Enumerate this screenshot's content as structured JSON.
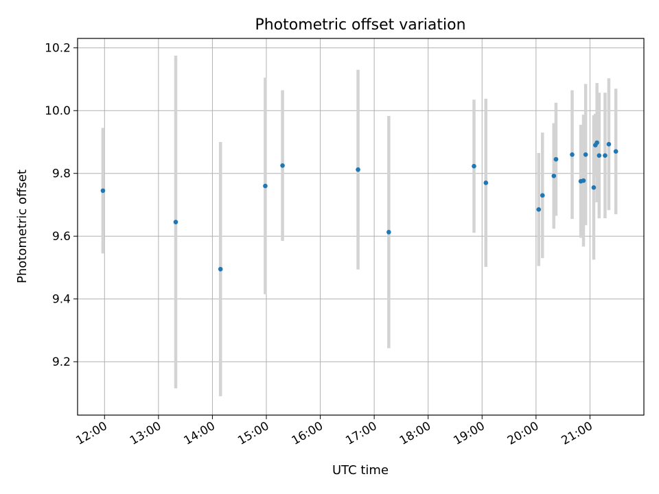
{
  "chart_data": {
    "type": "scatter",
    "title": "Photometric offset variation",
    "xlabel": "UTC time",
    "ylabel": "Photometric offset",
    "x_unit": "UTC hour",
    "xlim": [
      11.5,
      22.0
    ],
    "ylim": [
      9.03,
      10.23
    ],
    "x_ticks": [
      {
        "value": 12,
        "label": "12:00"
      },
      {
        "value": 13,
        "label": "13:00"
      },
      {
        "value": 14,
        "label": "14:00"
      },
      {
        "value": 15,
        "label": "15:00"
      },
      {
        "value": 16,
        "label": "16:00"
      },
      {
        "value": 17,
        "label": "17:00"
      },
      {
        "value": 18,
        "label": "18:00"
      },
      {
        "value": 19,
        "label": "19:00"
      },
      {
        "value": 20,
        "label": "20:00"
      },
      {
        "value": 21,
        "label": "21:00"
      }
    ],
    "y_ticks": [
      {
        "value": 9.2,
        "label": "9.2"
      },
      {
        "value": 9.4,
        "label": "9.4"
      },
      {
        "value": 9.6,
        "label": "9.6"
      },
      {
        "value": 9.8,
        "label": "9.8"
      },
      {
        "value": 10.0,
        "label": "10.0"
      },
      {
        "value": 10.2,
        "label": "10.2"
      }
    ],
    "grid": true,
    "point_color": "#1f77b4",
    "errorbar_color": "#d3d3d3",
    "points": [
      {
        "x": 11.97,
        "y": 9.745,
        "err": 0.2
      },
      {
        "x": 13.32,
        "y": 9.645,
        "err": 0.53
      },
      {
        "x": 14.15,
        "y": 9.495,
        "err": 0.405
      },
      {
        "x": 14.98,
        "y": 9.76,
        "err": 0.345
      },
      {
        "x": 15.3,
        "y": 9.825,
        "err": 0.24
      },
      {
        "x": 16.7,
        "y": 9.812,
        "err": 0.318
      },
      {
        "x": 17.27,
        "y": 9.613,
        "err": 0.37
      },
      {
        "x": 18.85,
        "y": 9.823,
        "err": 0.212
      },
      {
        "x": 19.07,
        "y": 9.77,
        "err": 0.268
      },
      {
        "x": 20.05,
        "y": 9.685,
        "err": 0.18
      },
      {
        "x": 20.12,
        "y": 9.73,
        "err": 0.2
      },
      {
        "x": 20.33,
        "y": 9.792,
        "err": 0.168
      },
      {
        "x": 20.37,
        "y": 9.845,
        "err": 0.18
      },
      {
        "x": 20.67,
        "y": 9.86,
        "err": 0.205
      },
      {
        "x": 20.83,
        "y": 9.775,
        "err": 0.18
      },
      {
        "x": 20.88,
        "y": 9.777,
        "err": 0.21
      },
      {
        "x": 20.92,
        "y": 9.86,
        "err": 0.225
      },
      {
        "x": 21.07,
        "y": 9.755,
        "err": 0.23
      },
      {
        "x": 21.1,
        "y": 9.89,
        "err": 0.1
      },
      {
        "x": 21.13,
        "y": 9.898,
        "err": 0.19
      },
      {
        "x": 21.17,
        "y": 9.857,
        "err": 0.2
      },
      {
        "x": 21.28,
        "y": 9.857,
        "err": 0.2
      },
      {
        "x": 21.35,
        "y": 9.893,
        "err": 0.21
      },
      {
        "x": 21.48,
        "y": 9.87,
        "err": 0.2
      }
    ]
  }
}
